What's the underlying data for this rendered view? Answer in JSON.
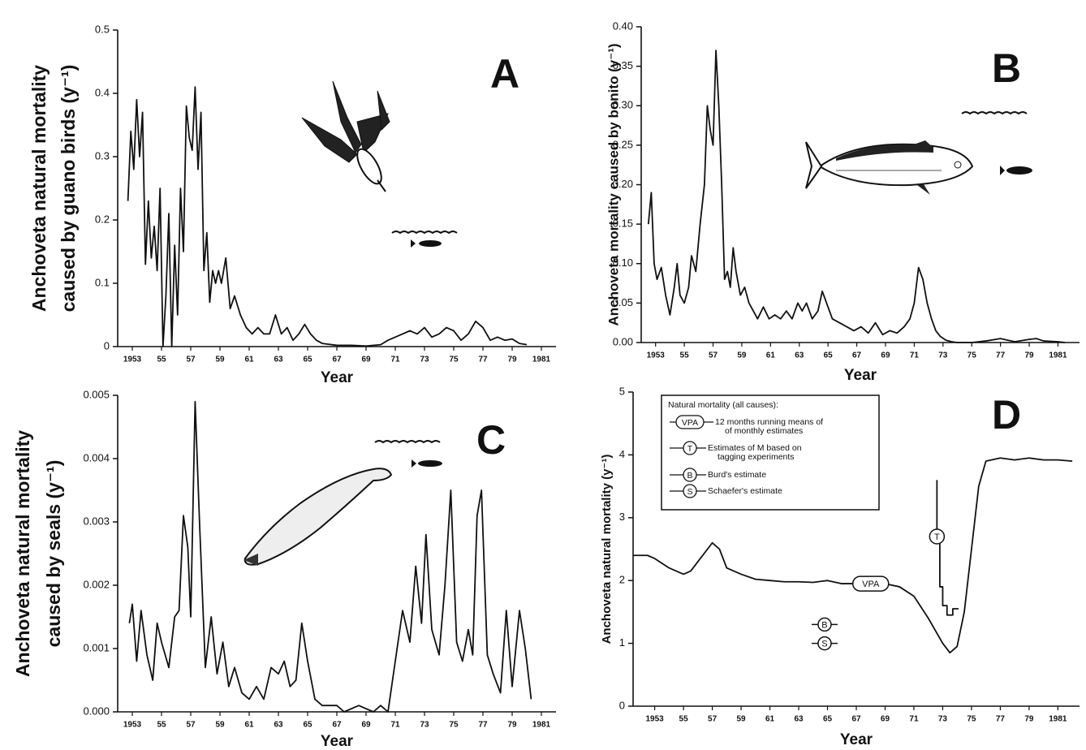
{
  "chart_data": [
    {
      "type": "line",
      "panel": "A",
      "xlabel": "Year",
      "ylabel": [
        "Anchoveta natural mortality",
        "caused by guano birds (y⁻¹)"
      ],
      "color": "#111111",
      "xlim": [
        1952,
        1982
      ],
      "ylim": [
        0,
        0.5
      ],
      "yticks": [
        0,
        0.1,
        0.2,
        0.3,
        0.4,
        0.5
      ],
      "xticks": [
        {
          "value": 1953,
          "label": "1953"
        },
        {
          "value": 1955,
          "label": "55"
        },
        {
          "value": 1957,
          "label": "57"
        },
        {
          "value": 1959,
          "label": "59"
        },
        {
          "value": 1961,
          "label": "61"
        },
        {
          "value": 1963,
          "label": "63"
        },
        {
          "value": 1965,
          "label": "65"
        },
        {
          "value": 1967,
          "label": "67"
        },
        {
          "value": 1969,
          "label": "69"
        },
        {
          "value": 1971,
          "label": "71"
        },
        {
          "value": 1973,
          "label": "73"
        },
        {
          "value": 1975,
          "label": "75"
        },
        {
          "value": 1977,
          "label": "77"
        },
        {
          "value": 1979,
          "label": "79"
        },
        {
          "value": 1981,
          "label": "1981"
        }
      ],
      "x": [
        1952.7,
        1952.9,
        1953.1,
        1953.3,
        1953.5,
        1953.7,
        1953.9,
        1954.1,
        1954.3,
        1954.5,
        1954.7,
        1954.9,
        1955.1,
        1955.3,
        1955.5,
        1955.7,
        1955.9,
        1956.1,
        1956.3,
        1956.5,
        1956.7,
        1956.9,
        1957.1,
        1957.3,
        1957.5,
        1957.7,
        1957.9,
        1958.1,
        1958.3,
        1958.5,
        1958.7,
        1958.9,
        1959.1,
        1959.4,
        1959.7,
        1960,
        1960.4,
        1960.8,
        1961.2,
        1961.6,
        1962,
        1962.4,
        1962.8,
        1963.2,
        1963.6,
        1964,
        1964.4,
        1964.8,
        1965.2,
        1965.6,
        1966,
        1967,
        1968,
        1969,
        1970,
        1970.5,
        1971,
        1971.5,
        1972,
        1972.5,
        1973,
        1973.5,
        1974,
        1974.5,
        1975,
        1975.5,
        1976,
        1976.5,
        1977,
        1977.5,
        1978,
        1978.5,
        1979,
        1979.5,
        1980
      ],
      "series": [
        {
          "values": [
            0.23,
            0.34,
            0.28,
            0.39,
            0.3,
            0.37,
            0.13,
            0.23,
            0.14,
            0.19,
            0.12,
            0.25,
            0.0,
            0.08,
            0.21,
            0.0,
            0.16,
            0.05,
            0.25,
            0.15,
            0.38,
            0.33,
            0.31,
            0.41,
            0.28,
            0.37,
            0.12,
            0.18,
            0.07,
            0.12,
            0.1,
            0.12,
            0.1,
            0.14,
            0.06,
            0.08,
            0.05,
            0.03,
            0.02,
            0.03,
            0.02,
            0.02,
            0.05,
            0.02,
            0.03,
            0.01,
            0.02,
            0.035,
            0.02,
            0.01,
            0.005,
            0.002,
            0.002,
            0.001,
            0.003,
            0.01,
            0.015,
            0.02,
            0.025,
            0.02,
            0.03,
            0.015,
            0.02,
            0.03,
            0.025,
            0.01,
            0.02,
            0.04,
            0.03,
            0.01,
            0.015,
            0.01,
            0.012,
            0.005,
            0.003
          ]
        }
      ]
    },
    {
      "type": "line",
      "panel": "B",
      "xlabel": "Year",
      "ylabel": [
        "Anchoveta  mortality  caused  by bonito  (y⁻¹)"
      ],
      "color": "#111111",
      "xlim": [
        1952,
        1982.5
      ],
      "ylim": [
        0,
        0.4
      ],
      "yticks": [
        {
          "value": 0,
          "label": "0.00"
        },
        {
          "value": 0.05,
          "label": "0.05"
        },
        {
          "value": 0.1,
          "label": "0.10"
        },
        {
          "value": 0.15,
          "label": "0.15"
        },
        {
          "value": 0.2,
          "label": "0.20"
        },
        {
          "value": 0.25,
          "label": "0.25"
        },
        {
          "value": 0.3,
          "label": "0.30"
        },
        {
          "value": 0.35,
          "label": "0.35"
        },
        {
          "value": 0.4,
          "label": "0.40"
        }
      ],
      "xticks": [
        {
          "value": 1953,
          "label": "1953"
        },
        {
          "value": 1955,
          "label": "55"
        },
        {
          "value": 1957,
          "label": "57"
        },
        {
          "value": 1959,
          "label": "59"
        },
        {
          "value": 1961,
          "label": "61"
        },
        {
          "value": 1963,
          "label": "63"
        },
        {
          "value": 1965,
          "label": "65"
        },
        {
          "value": 1967,
          "label": "67"
        },
        {
          "value": 1969,
          "label": "69"
        },
        {
          "value": 1971,
          "label": "71"
        },
        {
          "value": 1973,
          "label": "73"
        },
        {
          "value": 1975,
          "label": "75"
        },
        {
          "value": 1977,
          "label": "77"
        },
        {
          "value": 1979,
          "label": "79"
        },
        {
          "value": 1981,
          "label": "1981"
        }
      ],
      "x": [
        1952.5,
        1952.7,
        1952.9,
        1953.1,
        1953.4,
        1953.7,
        1954,
        1954.3,
        1954.5,
        1954.7,
        1955,
        1955.3,
        1955.5,
        1955.8,
        1956.1,
        1956.4,
        1956.6,
        1956.8,
        1957,
        1957.2,
        1957.4,
        1957.6,
        1957.8,
        1958,
        1958.2,
        1958.4,
        1958.6,
        1958.9,
        1959.2,
        1959.5,
        1959.8,
        1960.1,
        1960.5,
        1960.9,
        1961.3,
        1961.7,
        1962.1,
        1962.5,
        1962.9,
        1963.2,
        1963.5,
        1963.9,
        1964.3,
        1964.6,
        1964.9,
        1965.3,
        1965.8,
        1966.3,
        1966.8,
        1967.3,
        1967.8,
        1968.3,
        1968.8,
        1969.3,
        1969.8,
        1970.3,
        1970.7,
        1971,
        1971.3,
        1971.6,
        1971.9,
        1972.2,
        1972.5,
        1972.8,
        1973.2,
        1973.6,
        1974,
        1975,
        1976,
        1977,
        1977.5,
        1978,
        1979,
        1979.5,
        1980,
        1981,
        1981.5
      ],
      "series": [
        {
          "values": [
            0.15,
            0.19,
            0.1,
            0.08,
            0.095,
            0.06,
            0.035,
            0.07,
            0.1,
            0.06,
            0.05,
            0.07,
            0.11,
            0.09,
            0.15,
            0.2,
            0.3,
            0.27,
            0.25,
            0.37,
            0.3,
            0.2,
            0.08,
            0.09,
            0.07,
            0.12,
            0.09,
            0.06,
            0.07,
            0.05,
            0.04,
            0.03,
            0.045,
            0.03,
            0.035,
            0.03,
            0.04,
            0.03,
            0.05,
            0.04,
            0.05,
            0.03,
            0.04,
            0.065,
            0.05,
            0.03,
            0.025,
            0.02,
            0.015,
            0.02,
            0.012,
            0.025,
            0.01,
            0.015,
            0.012,
            0.02,
            0.03,
            0.05,
            0.095,
            0.08,
            0.05,
            0.03,
            0.015,
            0.008,
            0.003,
            0.001,
            0.0,
            0.0,
            0.002,
            0.005,
            0.003,
            0.001,
            0.004,
            0.005,
            0.002,
            0.001,
            0.0
          ]
        }
      ]
    },
    {
      "type": "line",
      "panel": "C",
      "xlabel": "Year",
      "ylabel": [
        "Anchoveta natural mortality",
        "caused by seals (y⁻¹)"
      ],
      "color": "#111111",
      "xlim": [
        1952,
        1982
      ],
      "ylim": [
        0,
        0.005
      ],
      "yticks": [
        {
          "value": 0,
          "label": "0.000"
        },
        {
          "value": 0.001,
          "label": "0.001"
        },
        {
          "value": 0.002,
          "label": "0.002"
        },
        {
          "value": 0.003,
          "label": "0.003"
        },
        {
          "value": 0.004,
          "label": "0.004"
        },
        {
          "value": 0.005,
          "label": "0.005"
        }
      ],
      "xticks": [
        {
          "value": 1953,
          "label": "1953"
        },
        {
          "value": 1955,
          "label": "55"
        },
        {
          "value": 1957,
          "label": "57"
        },
        {
          "value": 1959,
          "label": "59"
        },
        {
          "value": 1961,
          "label": "61"
        },
        {
          "value": 1963,
          "label": "63"
        },
        {
          "value": 1965,
          "label": "65"
        },
        {
          "value": 1967,
          "label": "67"
        },
        {
          "value": 1969,
          "label": "69"
        },
        {
          "value": 1971,
          "label": "71"
        },
        {
          "value": 1973,
          "label": "73"
        },
        {
          "value": 1975,
          "label": "75"
        },
        {
          "value": 1977,
          "label": "77"
        },
        {
          "value": 1979,
          "label": "79"
        },
        {
          "value": 1981,
          "label": "1981"
        }
      ],
      "x": [
        1952.8,
        1953,
        1953.3,
        1953.6,
        1954,
        1954.4,
        1954.7,
        1955,
        1955.5,
        1955.9,
        1956.2,
        1956.5,
        1956.8,
        1957,
        1957.3,
        1957.6,
        1958,
        1958.4,
        1958.8,
        1959.2,
        1959.6,
        1960,
        1960.5,
        1961,
        1961.5,
        1962,
        1962.5,
        1963,
        1963.4,
        1963.8,
        1964.2,
        1964.6,
        1965,
        1965.5,
        1966,
        1967,
        1967.5,
        1968.5,
        1969.5,
        1970,
        1970.5,
        1971,
        1971.5,
        1972,
        1972.4,
        1972.8,
        1973.1,
        1973.5,
        1974,
        1974.4,
        1974.8,
        1975.2,
        1975.6,
        1976,
        1976.3,
        1976.6,
        1976.9,
        1977.3,
        1977.7,
        1978.2,
        1978.6,
        1979,
        1979.5,
        1979.9,
        1980.3
      ],
      "series": [
        {
          "values": [
            0.0014,
            0.0017,
            0.0008,
            0.0016,
            0.0009,
            0.0005,
            0.0014,
            0.0011,
            0.0007,
            0.0015,
            0.0016,
            0.0031,
            0.0026,
            0.0015,
            0.0049,
            0.003,
            0.0007,
            0.0015,
            0.0006,
            0.0011,
            0.0004,
            0.0007,
            0.0003,
            0.0002,
            0.0004,
            0.0002,
            0.0007,
            0.0006,
            0.0008,
            0.0004,
            0.0005,
            0.0014,
            0.0008,
            0.0002,
            0.0001,
            0.0001,
            0.0,
            0.0001,
            0.0,
            0.0001,
            0.0,
            0.0008,
            0.0016,
            0.0011,
            0.0023,
            0.0014,
            0.0028,
            0.0013,
            0.0009,
            0.002,
            0.0035,
            0.0011,
            0.0008,
            0.0013,
            0.0009,
            0.0031,
            0.0035,
            0.0009,
            0.0006,
            0.0003,
            0.0016,
            0.0004,
            0.0016,
            0.001,
            0.0002
          ]
        }
      ]
    },
    {
      "type": "line",
      "panel": "D",
      "xlabel": "Year",
      "ylabel": [
        "Anchoveta  natural  mortality  (y⁻¹)"
      ],
      "color": "#111111",
      "xlim": [
        1951.5,
        1982.5
      ],
      "ylim": [
        0,
        5
      ],
      "yticks": [
        0,
        1,
        2,
        3,
        4,
        5
      ],
      "xticks": [
        {
          "value": 1953,
          "label": "1953"
        },
        {
          "value": 1955,
          "label": "55"
        },
        {
          "value": 1957,
          "label": "57"
        },
        {
          "value": 1959,
          "label": "59"
        },
        {
          "value": 1961,
          "label": "61"
        },
        {
          "value": 1963,
          "label": "63"
        },
        {
          "value": 1965,
          "label": "65"
        },
        {
          "value": 1967,
          "label": "67"
        },
        {
          "value": 1969,
          "label": "69"
        },
        {
          "value": 1971,
          "label": "71"
        },
        {
          "value": 1973,
          "label": "73"
        },
        {
          "value": 1975,
          "label": "75"
        },
        {
          "value": 1977,
          "label": "77"
        },
        {
          "value": 1979,
          "label": "79"
        },
        {
          "value": 1981,
          "label": "1981"
        }
      ],
      "legend": {
        "title": "Natural mortality (all causes):",
        "entries": [
          [
            "12 months running means of",
            "of monthly estimates"
          ],
          [
            "Estimates of M based on",
            "tagging experiments"
          ],
          [
            "Burd's estimate"
          ],
          [
            "Schaefer's estimate"
          ]
        ]
      },
      "series": [
        {
          "name": "VPA",
          "x": [
            1951.5,
            1952.5,
            1953,
            1954,
            1954.5,
            1955,
            1955.5,
            1956,
            1956.5,
            1957,
            1957.5,
            1958,
            1959,
            1960,
            1961,
            1962,
            1963,
            1964,
            1965,
            1966,
            1967,
            1968,
            1969,
            1970,
            1971,
            1972,
            1973,
            1973.5,
            1974,
            1974.5,
            1975,
            1975.5,
            1976,
            1977,
            1978,
            1979,
            1980,
            1981,
            1982
          ],
          "values": [
            2.4,
            2.4,
            2.35,
            2.2,
            2.15,
            2.1,
            2.15,
            2.3,
            2.45,
            2.6,
            2.5,
            2.2,
            2.1,
            2.02,
            2.0,
            1.98,
            1.98,
            1.97,
            2.0,
            1.95,
            1.95,
            1.95,
            1.95,
            1.9,
            1.75,
            1.4,
            1.0,
            0.85,
            0.95,
            1.5,
            2.5,
            3.5,
            3.9,
            3.95,
            3.92,
            3.95,
            3.92,
            3.92,
            3.9
          ]
        },
        {
          "name": "T",
          "x": [
            1972.6,
            1972.6,
            1972.8,
            1972.8,
            1973.0,
            1973.0,
            1973.3,
            1973.3,
            1973.7,
            1973.7,
            1974.1
          ],
          "values": [
            3.6,
            2.7,
            2.7,
            1.9,
            1.9,
            1.6,
            1.6,
            1.45,
            1.45,
            1.55,
            1.55
          ]
        },
        {
          "name": "B",
          "x": [
            1964.8
          ],
          "values": [
            1.3
          ]
        },
        {
          "name": "S",
          "x": [
            1964.8
          ],
          "values": [
            1.0
          ]
        }
      ]
    }
  ]
}
